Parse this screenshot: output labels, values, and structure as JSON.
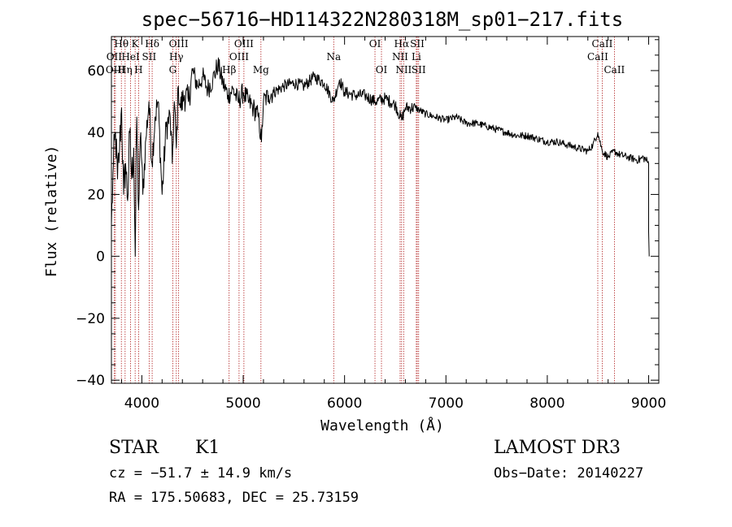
{
  "chart_data": {
    "type": "line",
    "title": "spec−56716−HD114322N280318M_sp01−217.fits",
    "xlabel": "Wavelength (Å)",
    "ylabel": "Flux (relative)",
    "xlim": [
      3700,
      9100
    ],
    "ylim": [
      -41,
      71
    ],
    "x_ticks": [
      4000,
      5000,
      6000,
      7000,
      8000,
      9000
    ],
    "y_ticks": [
      -40,
      -20,
      0,
      20,
      40,
      60
    ],
    "x_tick_labels": [
      "4000",
      "5000",
      "6000",
      "7000",
      "8000",
      "9000"
    ],
    "y_tick_labels": [
      "−40",
      "−20",
      "0",
      "20",
      "40",
      "60"
    ],
    "x_minor_step": 200,
    "y_minor_step": 5,
    "series": [
      {
        "name": "spectrum",
        "x": [
          3700,
          3720,
          3740,
          3760,
          3780,
          3800,
          3820,
          3840,
          3860,
          3880,
          3900,
          3920,
          3935,
          3950,
          3968,
          3990,
          4010,
          4040,
          4070,
          4100,
          4130,
          4160,
          4200,
          4240,
          4280,
          4300,
          4320,
          4340,
          4360,
          4380,
          4420,
          4460,
          4500,
          4550,
          4600,
          4650,
          4700,
          4750,
          4800,
          4850,
          4900,
          4950,
          5000,
          5050,
          5100,
          5150,
          5180,
          5200,
          5250,
          5300,
          5400,
          5500,
          5600,
          5700,
          5800,
          5890,
          5950,
          6000,
          6100,
          6200,
          6300,
          6400,
          6500,
          6563,
          6600,
          6700,
          6800,
          6900,
          7000,
          7100,
          7200,
          7300,
          7400,
          7500,
          7600,
          7700,
          7800,
          7900,
          8000,
          8100,
          8200,
          8300,
          8400,
          8450,
          8498,
          8542,
          8600,
          8662,
          8700,
          8800,
          8900,
          8950,
          9000,
          9000,
          9005
        ],
        "y": [
          10,
          30,
          40,
          25,
          35,
          48,
          20,
          30,
          18,
          40,
          25,
          35,
          0,
          45,
          15,
          40,
          20,
          38,
          50,
          30,
          45,
          50,
          20,
          42,
          45,
          30,
          50,
          35,
          55,
          48,
          52,
          50,
          60,
          55,
          58,
          54,
          57,
          62,
          56,
          52,
          54,
          50,
          53,
          50,
          48,
          45,
          37,
          50,
          52,
          53,
          55,
          56,
          55,
          58,
          56,
          50,
          57,
          53,
          52,
          52,
          50,
          51,
          49,
          44,
          48,
          48,
          46,
          45,
          44,
          45,
          43,
          43,
          42,
          41,
          40,
          39,
          39,
          38,
          37,
          37,
          36,
          35,
          34,
          36,
          40,
          34,
          32,
          34,
          33,
          32,
          31,
          32,
          30,
          8,
          0
        ]
      }
    ],
    "spectral_lines": [
      {
        "name": "Hθ",
        "wavelength": 3798
      },
      {
        "name": "OII",
        "wavelength": 3727
      },
      {
        "name": "OIII",
        "wavelength": 3739
      },
      {
        "name": "K",
        "wavelength": 3934
      },
      {
        "name": "HeI",
        "wavelength": 3889
      },
      {
        "name": "Hη",
        "wavelength": 3835
      },
      {
        "name": "H",
        "wavelength": 3968
      },
      {
        "name": "Hδ",
        "wavelength": 4102
      },
      {
        "name": "SII",
        "wavelength": 4072
      },
      {
        "name": "OIII",
        "wavelength": 4363
      },
      {
        "name": "Hγ",
        "wavelength": 4340
      },
      {
        "name": "G",
        "wavelength": 4305
      },
      {
        "name": "OIII",
        "wavelength": 5007
      },
      {
        "name": "OIII",
        "wavelength": 4959
      },
      {
        "name": "Hβ",
        "wavelength": 4861
      },
      {
        "name": "Mg",
        "wavelength": 5175
      },
      {
        "name": "Na",
        "wavelength": 5893
      },
      {
        "name": "OI",
        "wavelength": 6300
      },
      {
        "name": "OI",
        "wavelength": 6364
      },
      {
        "name": "Hα",
        "wavelength": 6563
      },
      {
        "name": "NII",
        "wavelength": 6548
      },
      {
        "name": "NII",
        "wavelength": 6583
      },
      {
        "name": "SII",
        "wavelength": 6717
      },
      {
        "name": "Li",
        "wavelength": 6708
      },
      {
        "name": "SII",
        "wavelength": 6731
      },
      {
        "name": "CaII",
        "wavelength": 8542
      },
      {
        "name": "CaII",
        "wavelength": 8498
      },
      {
        "name": "CaII",
        "wavelength": 8662
      }
    ],
    "line_color": "#b22222",
    "spectrum_color": "#000000"
  },
  "info": {
    "class_label": "STAR",
    "subclass": "K1",
    "survey": "LAMOST DR3",
    "cz": "cz = −51.7 ± 14.9 km/s",
    "obs_date": "Obs−Date: 20140227",
    "coords": "RA = 175.50683, DEC =  25.73159"
  }
}
